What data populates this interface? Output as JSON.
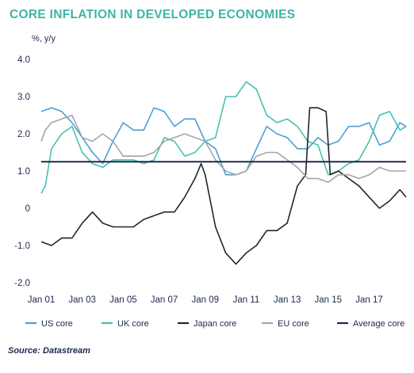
{
  "chart_data": {
    "type": "line",
    "title": "CORE INFLATION IN DEVELOPED ECONOMIES",
    "ylabel": "%, y/y",
    "source": "Source: Datastream",
    "ylim": [
      -2.0,
      4.0
    ],
    "xlim": [
      2001.0,
      2018.8
    ],
    "y_ticks": [
      {
        "value": 4.0,
        "label": "4.0"
      },
      {
        "value": 3.0,
        "label": "3.0"
      },
      {
        "value": 2.0,
        "label": "2.0"
      },
      {
        "value": 1.0,
        "label": "1.0"
      },
      {
        "value": 0,
        "label": "0"
      },
      {
        "value": -1.0,
        "label": "-1.0"
      },
      {
        "value": -2.0,
        "label": "-2.0"
      }
    ],
    "x_ticks": [
      {
        "value": 2001,
        "label": "Jan 01"
      },
      {
        "value": 2003,
        "label": "Jan 03"
      },
      {
        "value": 2005,
        "label": "Jan 05"
      },
      {
        "value": 2007,
        "label": "Jan 07"
      },
      {
        "value": 2009,
        "label": "Jan 09"
      },
      {
        "value": 2011,
        "label": "Jan 11"
      },
      {
        "value": 2013,
        "label": "Jan 13"
      },
      {
        "value": 2015,
        "label": "Jan 15"
      },
      {
        "value": 2017,
        "label": "Jan 17"
      }
    ],
    "grid": false,
    "legend_position": "bottom",
    "series": [
      {
        "name": "US core",
        "color": "#4a9fd4",
        "x": [
          2001.0,
          2001.5,
          2002.0,
          2002.5,
          2003.0,
          2003.5,
          2004.0,
          2004.5,
          2005.0,
          2005.5,
          2006.0,
          2006.5,
          2007.0,
          2007.5,
          2008.0,
          2008.5,
          2009.0,
          2009.5,
          2010.0,
          2010.5,
          2011.0,
          2011.5,
          2012.0,
          2012.5,
          2013.0,
          2013.5,
          2014.0,
          2014.5,
          2015.0,
          2015.5,
          2016.0,
          2016.5,
          2017.0,
          2017.5,
          2018.0,
          2018.5,
          2018.8
        ],
        "y": [
          2.6,
          2.7,
          2.6,
          2.3,
          1.9,
          1.5,
          1.2,
          1.8,
          2.3,
          2.1,
          2.1,
          2.7,
          2.6,
          2.2,
          2.4,
          2.4,
          1.8,
          1.6,
          0.9,
          0.9,
          1.0,
          1.6,
          2.2,
          2.0,
          1.9,
          1.6,
          1.6,
          1.9,
          1.7,
          1.8,
          2.2,
          2.2,
          2.3,
          1.7,
          1.8,
          2.3,
          2.2
        ]
      },
      {
        "name": "UK core",
        "color": "#45c2b1",
        "x": [
          2001.0,
          2001.2,
          2001.5,
          2002.0,
          2002.5,
          2003.0,
          2003.5,
          2004.0,
          2004.5,
          2005.0,
          2005.5,
          2006.0,
          2006.5,
          2007.0,
          2007.5,
          2008.0,
          2008.5,
          2009.0,
          2009.5,
          2010.0,
          2010.5,
          2011.0,
          2011.5,
          2012.0,
          2012.5,
          2013.0,
          2013.5,
          2014.0,
          2014.5,
          2015.0,
          2015.5,
          2016.0,
          2016.5,
          2017.0,
          2017.5,
          2018.0,
          2018.5,
          2018.8
        ],
        "y": [
          0.4,
          0.6,
          1.6,
          2.0,
          2.2,
          1.5,
          1.2,
          1.1,
          1.3,
          1.3,
          1.3,
          1.2,
          1.3,
          1.9,
          1.8,
          1.4,
          1.5,
          1.8,
          1.9,
          3.0,
          3.0,
          3.4,
          3.2,
          2.5,
          2.3,
          2.4,
          2.2,
          1.8,
          1.7,
          0.9,
          1.0,
          1.2,
          1.3,
          1.8,
          2.5,
          2.6,
          2.1,
          2.2
        ]
      },
      {
        "name": "Japan core",
        "color": "#22252b",
        "x": [
          2001.0,
          2001.5,
          2002.0,
          2002.5,
          2003.0,
          2003.5,
          2004.0,
          2004.5,
          2005.0,
          2005.5,
          2006.0,
          2006.5,
          2007.0,
          2007.5,
          2008.0,
          2008.5,
          2008.8,
          2009.0,
          2009.5,
          2010.0,
          2010.5,
          2011.0,
          2011.5,
          2012.0,
          2012.5,
          2013.0,
          2013.5,
          2013.9,
          2014.1,
          2014.5,
          2014.9,
          2015.1,
          2015.5,
          2016.0,
          2016.5,
          2017.0,
          2017.5,
          2018.0,
          2018.5,
          2018.8
        ],
        "y": [
          -0.9,
          -1.0,
          -0.8,
          -0.8,
          -0.4,
          -0.1,
          -0.4,
          -0.5,
          -0.5,
          -0.5,
          -0.3,
          -0.2,
          -0.1,
          -0.1,
          0.3,
          0.8,
          1.2,
          0.9,
          -0.5,
          -1.2,
          -1.5,
          -1.2,
          -1.0,
          -0.6,
          -0.6,
          -0.4,
          0.6,
          0.9,
          2.7,
          2.7,
          2.6,
          0.9,
          1.0,
          0.8,
          0.6,
          0.3,
          0.0,
          0.2,
          0.5,
          0.3
        ]
      },
      {
        "name": "EU core",
        "color": "#a5a5a5",
        "x": [
          2001.0,
          2001.2,
          2001.5,
          2002.0,
          2002.5,
          2003.0,
          2003.5,
          2004.0,
          2004.5,
          2005.0,
          2005.5,
          2006.0,
          2006.5,
          2007.0,
          2007.5,
          2008.0,
          2008.5,
          2009.0,
          2009.5,
          2010.0,
          2010.5,
          2011.0,
          2011.5,
          2012.0,
          2012.5,
          2013.0,
          2013.5,
          2014.0,
          2014.5,
          2015.0,
          2015.5,
          2016.0,
          2016.5,
          2017.0,
          2017.5,
          2018.0,
          2018.5,
          2018.8
        ],
        "y": [
          1.8,
          2.1,
          2.3,
          2.4,
          2.5,
          1.9,
          1.8,
          2.0,
          1.8,
          1.4,
          1.4,
          1.4,
          1.5,
          1.8,
          1.9,
          2.0,
          1.9,
          1.8,
          1.3,
          1.0,
          0.9,
          1.0,
          1.4,
          1.5,
          1.5,
          1.3,
          1.1,
          0.8,
          0.8,
          0.7,
          0.9,
          0.9,
          0.8,
          0.9,
          1.1,
          1.0,
          1.0,
          1.0
        ]
      },
      {
        "name": "Average core",
        "color": "#1b2a4a",
        "x": [
          2001.0,
          2018.8
        ],
        "y": [
          1.25,
          1.25
        ]
      }
    ]
  }
}
